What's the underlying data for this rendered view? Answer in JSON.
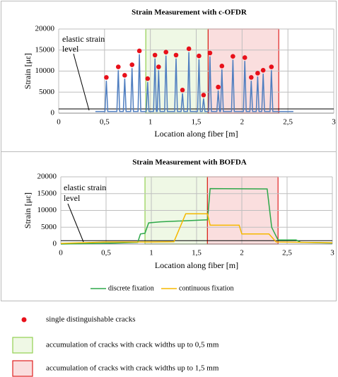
{
  "chart_data": [
    {
      "type": "line",
      "title": "Strain Measurement with c-OFDR",
      "x_label": "Location along fiber [m]",
      "y_label": "Strain [με]",
      "annotation": [
        "elastic strain",
        "level"
      ],
      "xlim": [
        0,
        3
      ],
      "ylim": [
        0,
        20000
      ],
      "xticks": [
        0,
        {
          "value": 0.5,
          "label": "0,5"
        },
        1,
        {
          "value": 1.5,
          "label": "1,5"
        },
        2,
        {
          "value": 2.5,
          "label": "2,5"
        },
        3
      ],
      "yticks": [
        0,
        5000,
        10000,
        15000,
        20000
      ],
      "grid": true,
      "reference_line": 1000,
      "regions": [
        {
          "x": [
            0.95,
            1.63
          ],
          "color": "#92d050"
        },
        {
          "x": [
            1.63,
            2.4
          ],
          "color": "#e02020"
        }
      ],
      "series": [
        {
          "type": "line",
          "color": "#4f7ec0",
          "x": [
            0.4,
            0.505,
            0.52,
            0.535,
            0.635,
            0.65,
            0.665,
            0.705,
            0.72,
            0.735,
            0.785,
            0.8,
            0.815,
            0.865,
            0.88,
            0.895,
            0.955,
            0.97,
            0.985,
            1.035,
            1.05,
            1.065,
            1.075,
            1.09,
            1.105,
            1.155,
            1.17,
            1.185,
            1.265,
            1.28,
            1.295,
            1.335,
            1.35,
            1.365,
            1.405,
            1.42,
            1.435,
            1.515,
            1.53,
            1.545,
            1.565,
            1.58,
            1.595,
            1.635,
            1.65,
            1.665,
            1.725,
            1.74,
            1.755,
            1.765,
            1.78,
            1.795,
            1.885,
            1.9,
            1.915,
            2.015,
            2.03,
            2.045,
            2.085,
            2.1,
            2.115,
            2.155,
            2.17,
            2.185,
            2.215,
            2.23,
            2.245,
            2.305,
            2.32,
            2.335,
            2.56
          ],
          "values": [
            400,
            400,
            7700,
            400,
            400,
            10200,
            400,
            400,
            8200,
            400,
            400,
            10700,
            400,
            400,
            14000,
            400,
            400,
            7400,
            400,
            400,
            13000,
            400,
            400,
            10200,
            400,
            400,
            13700,
            400,
            400,
            13000,
            400,
            400,
            4700,
            400,
            400,
            14500,
            400,
            400,
            12800,
            400,
            400,
            3500,
            400,
            400,
            13500,
            400,
            400,
            5400,
            400,
            400,
            10400,
            400,
            400,
            12700,
            400,
            400,
            12400,
            400,
            400,
            7700,
            400,
            400,
            8700,
            400,
            400,
            9400,
            400,
            400,
            10200,
            400,
            400
          ]
        },
        {
          "type": "scatter",
          "color": "#e8101a",
          "x": [
            0.52,
            0.65,
            0.72,
            0.8,
            0.88,
            0.97,
            1.05,
            1.09,
            1.17,
            1.28,
            1.35,
            1.42,
            1.53,
            1.58,
            1.65,
            1.74,
            1.78,
            1.9,
            2.03,
            2.1,
            2.17,
            2.23,
            2.32
          ],
          "values": [
            8500,
            11000,
            9000,
            11500,
            14800,
            8200,
            13800,
            11000,
            14500,
            13800,
            5500,
            15300,
            13600,
            4300,
            14300,
            6200,
            11200,
            13500,
            13200,
            8500,
            9500,
            10200,
            11000
          ]
        }
      ]
    },
    {
      "type": "line",
      "title": "Strain Measurement with BOFDA",
      "x_label": "Location along fiber [m]",
      "y_label": "Strain [με]",
      "annotation": [
        "elastic strain",
        "level"
      ],
      "xlim": [
        0,
        3
      ],
      "ylim": [
        0,
        20000
      ],
      "xticks": [
        0,
        {
          "value": 0.5,
          "label": "0,5"
        },
        1,
        {
          "value": 1.5,
          "label": "1,5"
        },
        2,
        {
          "value": 2.5,
          "label": "2,5"
        },
        3
      ],
      "yticks": [
        0,
        5000,
        10000,
        15000,
        20000
      ],
      "grid": true,
      "reference_line": 1000,
      "legend": "bottom",
      "regions": [
        {
          "x": [
            0.93,
            1.62
          ],
          "color": "#92d050"
        },
        {
          "x": [
            1.62,
            2.4
          ],
          "color": "#e02020"
        }
      ],
      "series": [
        {
          "type": "line",
          "name": "discrete fixation",
          "color": "#2ea84a",
          "x": [
            0,
            0.6,
            0.85,
            0.88,
            0.93,
            0.97,
            1.1,
            1.62,
            1.65,
            2.28,
            2.33,
            2.4,
            2.6,
            2.65,
            3
          ],
          "values": [
            0,
            300,
            500,
            3000,
            3200,
            6300,
            6600,
            7200,
            16500,
            16400,
            5000,
            1200,
            1200,
            500,
            300
          ]
        },
        {
          "type": "line",
          "name": "continuous fixation",
          "color": "#f5b800",
          "x": [
            0,
            0.5,
            1.0,
            1.25,
            1.38,
            1.62,
            1.65,
            1.97,
            2.0,
            2.3,
            2.38,
            3
          ],
          "values": [
            200,
            600,
            600,
            700,
            9000,
            9000,
            5600,
            5600,
            3000,
            3000,
            600,
            400
          ]
        }
      ]
    }
  ],
  "legend": [
    {
      "label": "single  distinguishable cracks",
      "color": "#e8101a"
    },
    {
      "label": "accumulation of cracks with crack widths up to 0,5 mm",
      "color": "#92d050"
    },
    {
      "label": "accumulation of cracks with crack widths up to 1,5 mm",
      "color": "#e02020"
    }
  ]
}
